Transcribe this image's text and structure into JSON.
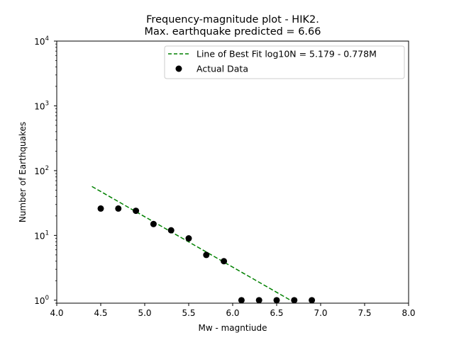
{
  "chart_data": {
    "type": "scatter",
    "title_line1": "Frequency-magnitude plot - HIK2.",
    "title_line2": "Max. earthquake predicted = 6.66",
    "xlabel": "Mw - magntiude",
    "ylabel": "Number of Earthquakes",
    "xlim": [
      4.0,
      8.0
    ],
    "ylim": [
      0.9,
      10000
    ],
    "yscale": "log",
    "grid": false,
    "legend_position": "upper right",
    "x_ticks": [
      4.0,
      4.5,
      5.0,
      5.5,
      6.0,
      6.5,
      7.0,
      7.5,
      8.0
    ],
    "x_tick_labels": [
      "4.0",
      "4.5",
      "5.0",
      "5.5",
      "6.0",
      "6.5",
      "7.0",
      "7.5",
      "8.0"
    ],
    "y_ticks": [
      1,
      10,
      100,
      1000,
      10000
    ],
    "y_tick_bases": [
      "10",
      "10",
      "10",
      "10",
      "10"
    ],
    "y_tick_exponents": [
      "0",
      "1",
      "2",
      "3",
      "4"
    ],
    "series": [
      {
        "name": "Line of Best Fit  log10N = 5.179 - 0.778M",
        "kind": "line",
        "style": "dashed",
        "color": "#008000",
        "intercept": 5.179,
        "slope": -0.778,
        "x_range": [
          4.4,
          6.7
        ]
      },
      {
        "name": "Actual Data",
        "kind": "scatter",
        "color": "#000000",
        "x": [
          4.5,
          4.7,
          4.9,
          5.1,
          5.3,
          5.5,
          5.7,
          5.9,
          6.1,
          6.3,
          6.5,
          6.7,
          6.9
        ],
        "y": [
          26,
          26,
          24,
          15,
          12,
          9,
          5,
          4,
          1,
          1,
          1,
          1,
          1
        ]
      }
    ]
  }
}
